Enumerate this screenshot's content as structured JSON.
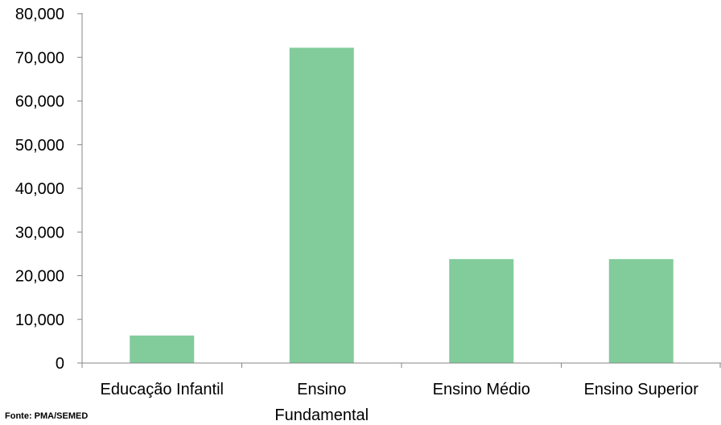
{
  "chart_data": {
    "type": "bar",
    "categories": [
      [
        "Educação Infantil"
      ],
      [
        "Ensino",
        "Fundamental"
      ],
      [
        "Ensino Médio"
      ],
      [
        "Ensino Superior"
      ]
    ],
    "values": [
      6300,
      72200,
      23800,
      23800
    ],
    "yticks": [
      "0",
      "10,000",
      "20,000",
      "30,000",
      "40,000",
      "50,000",
      "60,000",
      "70,000",
      "80,000"
    ],
    "ylim": [
      0,
      80000
    ],
    "bar_color": "#82cc9c",
    "axis_color": "#868686",
    "grid": false,
    "legend": "none"
  },
  "source": "Fonte: PMA/SEMED"
}
